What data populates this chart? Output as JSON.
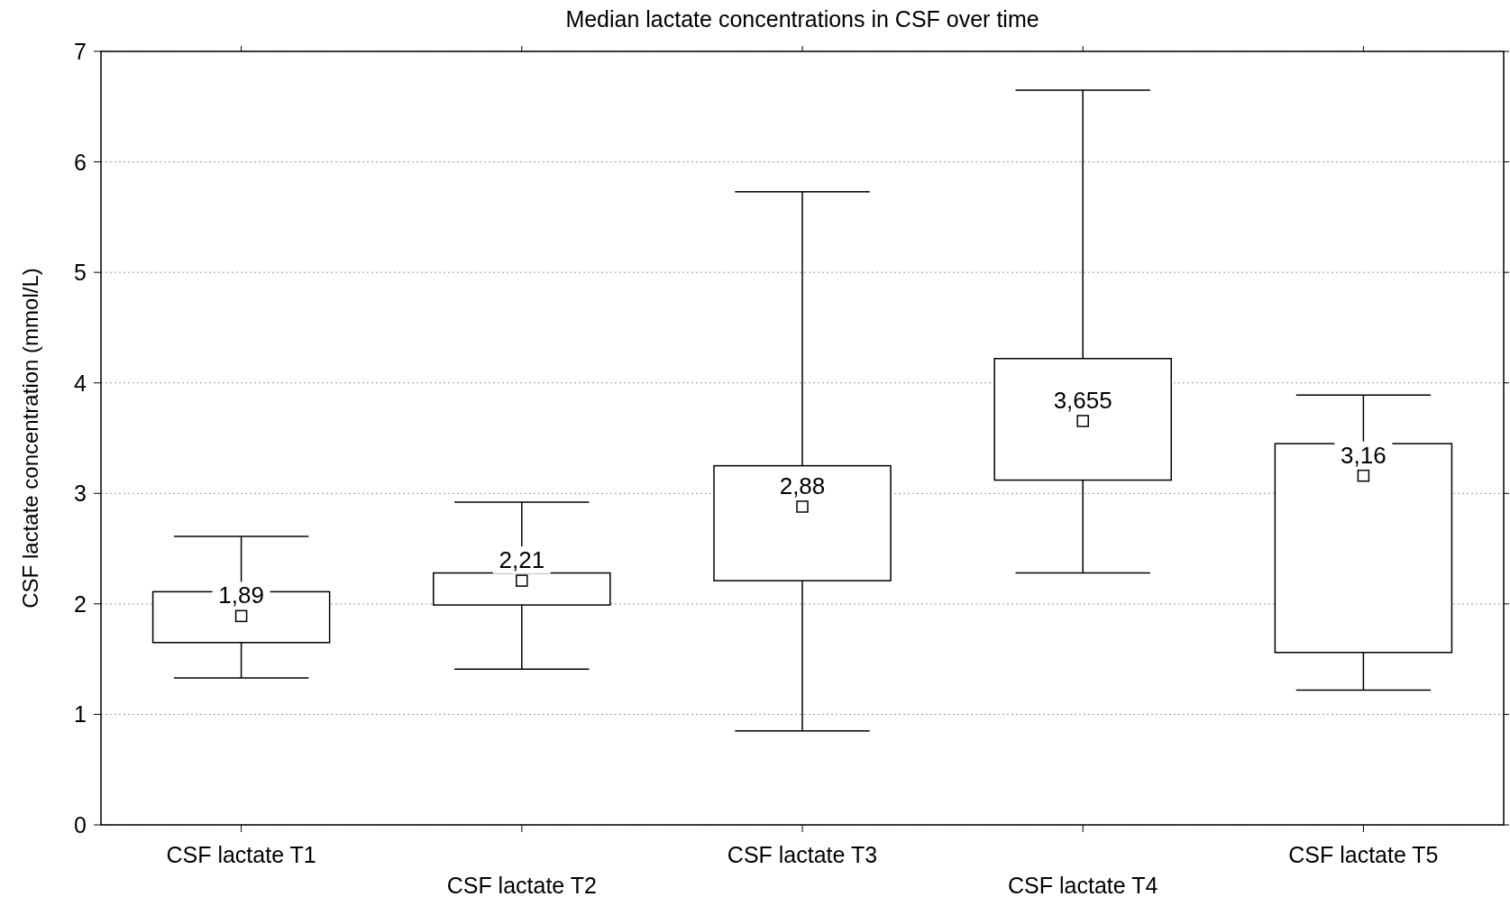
{
  "chart_data": {
    "type": "box",
    "title": "Median lactate concentrations in CSF over time",
    "ylabel": "CSF lactate concentration (mmol/L)",
    "categories": [
      "CSF lactate T1",
      "CSF lactate T2",
      "CSF lactate T3",
      "CSF lactate T4",
      "CSF lactate T5"
    ],
    "boxes": [
      {
        "low": 1.33,
        "q1": 1.65,
        "median": 1.89,
        "q3": 2.11,
        "high": 2.61
      },
      {
        "low": 1.41,
        "q1": 1.99,
        "median": 2.21,
        "q3": 2.28,
        "high": 2.92
      },
      {
        "low": 0.85,
        "q1": 2.21,
        "median": 2.88,
        "q3": 3.25,
        "high": 5.73
      },
      {
        "low": 2.28,
        "q1": 3.12,
        "median": 3.655,
        "q3": 4.22,
        "high": 6.65
      },
      {
        "low": 1.22,
        "q1": 1.56,
        "median": 3.16,
        "q3": 3.45,
        "high": 3.89
      }
    ],
    "value_labels": [
      "1,89",
      "2,21",
      "2,88",
      "3,655",
      "3,16"
    ],
    "color": "#000000",
    "marker": "square",
    "ylim": [
      0,
      7
    ],
    "yticks": [
      0,
      1,
      2,
      3,
      4,
      5,
      6,
      7
    ],
    "grid": "y"
  }
}
